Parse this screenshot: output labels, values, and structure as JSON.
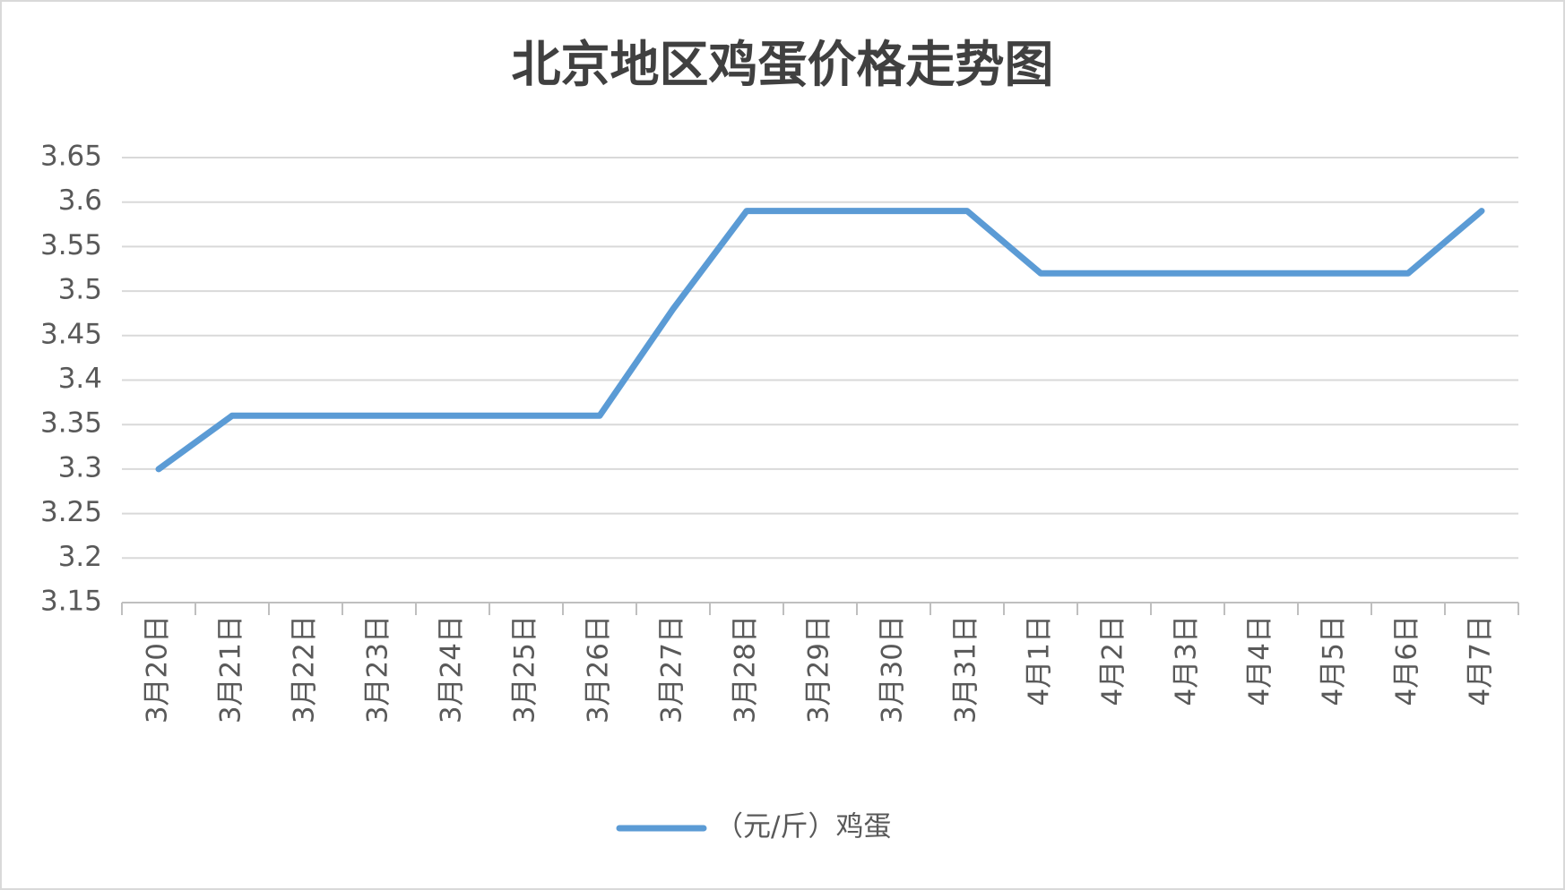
{
  "chart_data": {
    "type": "line",
    "title": "北京地区鸡蛋价格走势图",
    "categories": [
      "3月20日",
      "3月21日",
      "3月22日",
      "3月23日",
      "3月24日",
      "3月25日",
      "3月26日",
      "3月27日",
      "3月28日",
      "3月29日",
      "3月30日",
      "3月31日",
      "4月1日",
      "4月2日",
      "4月3日",
      "4月4日",
      "4月5日",
      "4月6日",
      "4月7日"
    ],
    "series": [
      {
        "name": "（元/斤）鸡蛋",
        "color": "#5b9bd5",
        "values": [
          3.3,
          3.36,
          3.36,
          3.36,
          3.36,
          3.36,
          3.36,
          3.48,
          3.59,
          3.59,
          3.59,
          3.59,
          3.52,
          3.52,
          3.52,
          3.52,
          3.52,
          3.52,
          3.59
        ]
      }
    ],
    "ylim": [
      3.15,
      3.65
    ],
    "yticks": [
      3.15,
      3.2,
      3.25,
      3.3,
      3.35,
      3.4,
      3.45,
      3.5,
      3.55,
      3.6,
      3.65
    ],
    "grid": true,
    "legend": "bottom"
  }
}
